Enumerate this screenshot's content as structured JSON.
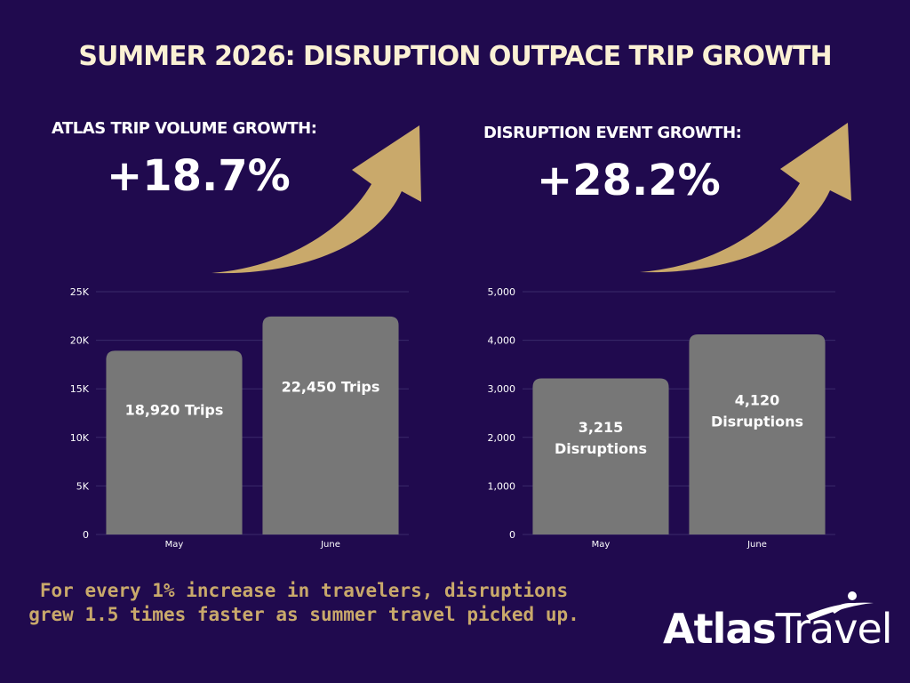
{
  "title": "SUMMER 2026: DISRUPTION OUTPACE TRIP GROWTH",
  "left_metric": {
    "label": "ATLAS TRIP VOLUME GROWTH:",
    "value": "+18.7%"
  },
  "right_metric": {
    "label": "DISRUPTION EVENT GROWTH:",
    "value": "+28.2%"
  },
  "colors": {
    "background": "#200a4e",
    "bar": "#777777",
    "accent": "#c9a96b",
    "title": "#fbf1d4",
    "gridline": "#3a2a6a"
  },
  "chart_data": [
    {
      "type": "bar",
      "categories": [
        "May",
        "June"
      ],
      "values": [
        18920,
        22450
      ],
      "data_labels": [
        [
          "18,920 Trips"
        ],
        [
          "22,450 Trips"
        ]
      ],
      "ylim": [
        0,
        25000
      ],
      "yticks": [
        "0",
        "5K",
        "10K",
        "15K",
        "20K",
        "25K"
      ],
      "ytick_values": [
        0,
        5000,
        10000,
        15000,
        20000,
        25000
      ],
      "grid": true
    },
    {
      "type": "bar",
      "categories": [
        "May",
        "June"
      ],
      "values": [
        3215,
        4120
      ],
      "data_labels": [
        [
          "3,215",
          "Disruptions"
        ],
        [
          "4,120",
          "Disruptions"
        ]
      ],
      "ylim": [
        0,
        5000
      ],
      "yticks": [
        "0",
        "1,000",
        "2,000",
        "3,000",
        "4,000",
        "5,000"
      ],
      "ytick_values": [
        0,
        1000,
        2000,
        3000,
        4000,
        5000
      ],
      "grid": true
    }
  ],
  "footnote": "For every 1% increase in travelers, disruptions grew 1.5 times faster as summer travel picked up.",
  "brand": {
    "part1": "Atlas",
    "part2": "Travel",
    "icon": "traveler-swoosh-icon"
  }
}
